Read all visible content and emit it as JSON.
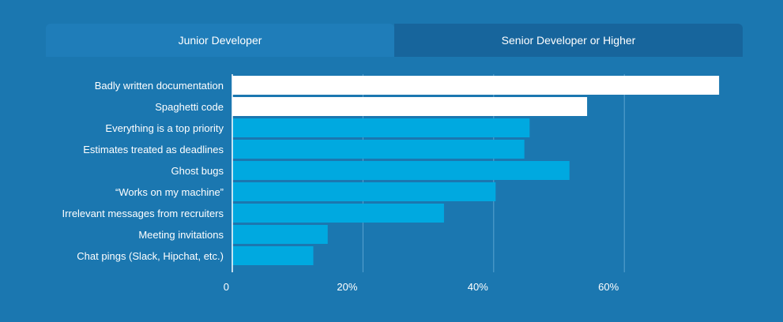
{
  "tabs": [
    {
      "label": "Junior Developer",
      "active": true
    },
    {
      "label": "Senior Developer or Higher",
      "active": false
    }
  ],
  "colors": {
    "background": "#1b77b0",
    "highlight_bar": "#ffffff",
    "bar": "#00a9e0",
    "grid": "#5aa3d0"
  },
  "chart_data": {
    "type": "bar",
    "orientation": "horizontal",
    "title": "",
    "xlabel": "",
    "ylabel": "",
    "xlim": [
      0,
      76
    ],
    "grid": true,
    "ticks": [
      {
        "value": 0,
        "label": "0"
      },
      {
        "value": 20,
        "label": "20%"
      },
      {
        "value": 40,
        "label": "40%"
      },
      {
        "value": 60,
        "label": "60%"
      }
    ],
    "categories": [
      "Badly written documentation",
      "Spaghetti code",
      "Everything is a top priority",
      "Estimates treated as deadlines",
      "Ghost bugs",
      "“Works on my machine”",
      "Irrelevant messages from recruiters",
      "Meeting invitations",
      "Chat pings (Slack, Hipchat, etc.)"
    ],
    "values": [
      74.5,
      54.3,
      45.5,
      44.7,
      51.6,
      40.3,
      32.4,
      14.6,
      12.4
    ],
    "highlighted": [
      true,
      true,
      false,
      false,
      false,
      false,
      false,
      false,
      false
    ]
  }
}
